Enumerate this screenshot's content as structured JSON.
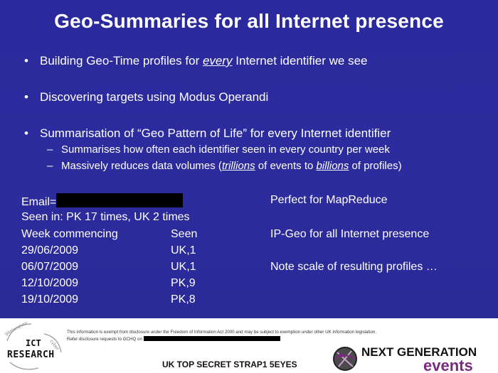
{
  "slide": {
    "title": "Geo-Summaries for all Internet presence",
    "bullets": [
      {
        "pre": "Building Geo-Time profiles for ",
        "em": "every",
        "post": " Internet identifier we see"
      },
      {
        "text": "Discovering targets using Modus Operandi"
      },
      {
        "text": "Summarisation of “Geo Pattern of Life” for every Internet identifier"
      }
    ],
    "bullet_glyph": "•",
    "sub_glyph": "–",
    "sub_bullets": [
      {
        "text": "Summarises how often each identifier seen in every country per week"
      },
      {
        "pre": "Massively reduces data volumes (",
        "em1": "trillions",
        "mid": " of events to ",
        "em2": "billions",
        "post": " of profiles)"
      }
    ],
    "profile": {
      "email_label": "Email=",
      "seen_in": "Seen in: PK 17 times, UK 2 times",
      "week_header": "Week commencing",
      "seen_header": "Seen",
      "rows": [
        {
          "week": "29/06/2009",
          "seen": "UK,1"
        },
        {
          "week": "06/07/2009",
          "seen": "UK,1"
        },
        {
          "week": "12/10/2009",
          "seen": "PK,9"
        },
        {
          "week": "19/10/2009",
          "seen": "PK,8"
        }
      ]
    },
    "notes": [
      "Perfect for MapReduce",
      "IP-Geo for all Internet presence",
      "Note scale of resulting profiles …"
    ]
  },
  "footer": {
    "ict_logo": {
      "top": "ICT",
      "bottom": "RESEARCH",
      "arc_left": "geolocation",
      "arc_right": "cyber"
    },
    "notice_line1": "This information is exempt from disclosure under the Freedom of Information Act 2000 and may be subject to exemption under other UK information legislation.",
    "notice_line2": "Refer disclosure requests to GCHQ on",
    "classification": "UK TOP SECRET STRAP1 5EYES",
    "ng_logo": {
      "top": "NEXT GENERATION",
      "bottom": "events"
    }
  },
  "colors": {
    "slide_bg": "#2c2c9f",
    "text": "#ffffff",
    "redaction": "#000000",
    "events_purple": "#7a2a7e"
  }
}
